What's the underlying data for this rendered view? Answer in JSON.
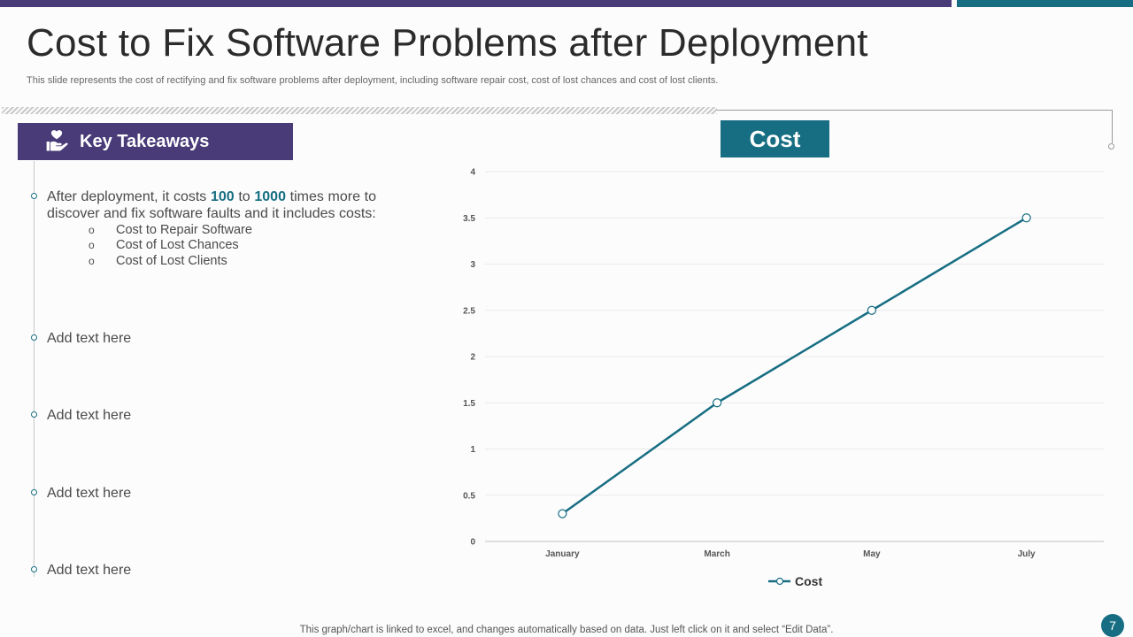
{
  "slide": {
    "title": "Cost to Fix Software Problems after Deployment",
    "subtitle": "This slide represents the cost of rectifying and fix  software problems after deployment, including software repair cost, cost of lost chances and cost of lost clients.",
    "footnote": "This graph/chart is linked to excel,  and changes automatically based on data. Just left click on it and select “Edit Data”.",
    "page_number": "7"
  },
  "takeaways": {
    "heading": "Key Takeaways",
    "icon": "hands-heart-icon",
    "first_point": {
      "pre": "After deployment,  it costs ",
      "low": "100",
      "mid": " to ",
      "high": "1000",
      "post": " times more to discover and fix software faults  and it includes costs:"
    },
    "sub_items": [
      "Cost to Repair Software",
      "Cost of Lost Chances",
      "Cost of Lost Clients"
    ],
    "other_points": [
      "Add text here",
      "Add text here",
      "Add text here",
      "Add text here"
    ]
  },
  "chart_box_label": "Cost",
  "colors": {
    "purple": "#483b77",
    "teal": "#176e82"
  },
  "chart_data": {
    "type": "line",
    "categories": [
      "January",
      "March",
      "May",
      "July"
    ],
    "series": [
      {
        "name": "Cost",
        "values": [
          0.3,
          1.5,
          2.5,
          3.5
        ],
        "color": "#176e82"
      }
    ],
    "yticks": [
      "0",
      "0.5",
      "1",
      "1.5",
      "2",
      "2.5",
      "3",
      "3.5",
      "4"
    ],
    "ylim": [
      0,
      4
    ],
    "grid": true,
    "legend": "bottom"
  }
}
